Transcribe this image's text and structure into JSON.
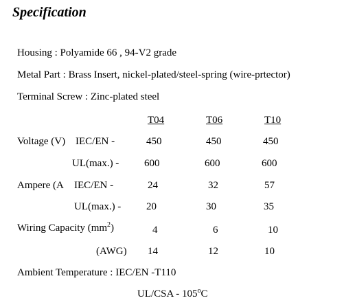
{
  "title": "Specification",
  "materials": [
    "Housing : Polyamide 66 , 94-V2 grade",
    "Metal Part : Brass Insert, nickel-plated/steel-spring (wire-prtector)",
    "Terminal Screw : Zinc-plated steel"
  ],
  "table": {
    "columns": [
      "T04",
      "T06",
      "T10"
    ],
    "rows": [
      {
        "group": "Voltage (V)",
        "label": "IEC/EN -",
        "values": [
          450,
          450,
          450
        ]
      },
      {
        "label": "UL(max.) -",
        "values": [
          600,
          600,
          600
        ]
      },
      {
        "group": "Ampere (A",
        "label": "IEC/EN -",
        "values": [
          24,
          32,
          57
        ]
      },
      {
        "label": "UL(max.) -",
        "values": [
          20,
          30,
          35
        ]
      },
      {
        "group": "Wiring Capacity (mm",
        "group_sup": "2",
        "group_end": ")",
        "values": [
          4,
          6,
          10
        ]
      },
      {
        "label": "(AWG)",
        "values": [
          14,
          12,
          10
        ]
      }
    ]
  },
  "ambient": {
    "text": "Ambient Temperature : IEC/EN -T110",
    "ul": "UL/CSA - 105",
    "ul_sup": "o",
    "ul_end": "C"
  }
}
